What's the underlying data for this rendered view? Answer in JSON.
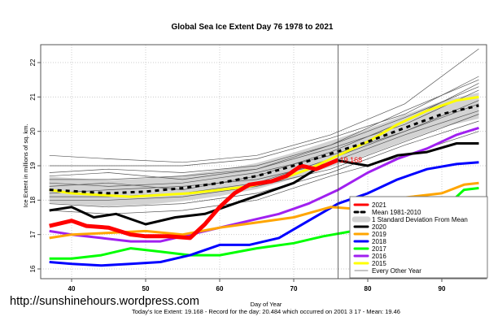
{
  "chart_data": {
    "type": "line",
    "title": "Global Sea Ice Extent Day 76 1978 to 2021",
    "xlabel": "Day of Year",
    "ylabel": "Ice Extent in millions of sq. km.",
    "xlim": [
      36.5,
      96
    ],
    "ylim": [
      15.85,
      22.4
    ],
    "xticks": [
      40,
      50,
      60,
      70,
      80,
      90
    ],
    "yticks": [
      16,
      17,
      18,
      19,
      20,
      21,
      22
    ],
    "grid": true,
    "current_day": 76,
    "current_value_label": "19.168",
    "legend_position": "bottom-right",
    "footer": "Today's Ice Extent: 19.168  - Record for the day: 20.484 which occurred on 2001 3 17  - Mean: 19.46",
    "watermark": "http://sunshinehours.wordpress.com",
    "sd_band": {
      "name": "1 Standard Deviation From Mean",
      "halfwidth": 0.38,
      "color": "#d3d3d3"
    },
    "mean": {
      "name": "Mean 1981-2010",
      "color": "#000000",
      "x": [
        37,
        45,
        50,
        55,
        60,
        65,
        70,
        75,
        80,
        85,
        90,
        95
      ],
      "y": [
        18.3,
        18.2,
        18.25,
        18.35,
        18.5,
        18.7,
        19.0,
        19.35,
        19.7,
        20.1,
        20.5,
        20.75
      ]
    },
    "series": [
      {
        "name": "2021",
        "color": "#ff0000",
        "width": 5,
        "x": [
          37,
          40,
          42,
          45,
          48,
          50,
          53,
          56,
          58,
          60,
          62,
          64,
          67,
          69,
          71,
          73,
          76
        ],
        "y": [
          17.25,
          17.4,
          17.25,
          17.2,
          17.0,
          16.95,
          16.95,
          16.9,
          17.3,
          17.8,
          18.2,
          18.45,
          18.55,
          18.7,
          19.0,
          18.9,
          19.17
        ]
      },
      {
        "name": "2020",
        "color": "#000000",
        "width": 3,
        "x": [
          37,
          40,
          43,
          46,
          50,
          54,
          58,
          62,
          66,
          70,
          73,
          76,
          80,
          84,
          88,
          92,
          95
        ],
        "y": [
          17.7,
          17.8,
          17.5,
          17.6,
          17.3,
          17.5,
          17.6,
          17.9,
          18.2,
          18.5,
          18.9,
          19.15,
          19.0,
          19.3,
          19.4,
          19.65,
          19.65
        ]
      },
      {
        "name": "2019",
        "color": "#ffa500",
        "width": 3,
        "x": [
          37,
          40,
          45,
          50,
          55,
          60,
          65,
          70,
          75,
          78,
          82,
          86,
          90,
          93,
          95
        ],
        "y": [
          16.9,
          17.0,
          17.05,
          17.1,
          17.0,
          17.2,
          17.35,
          17.5,
          17.8,
          17.75,
          18.0,
          18.1,
          18.2,
          18.45,
          18.5
        ]
      },
      {
        "name": "2018",
        "color": "#0000ff",
        "width": 3,
        "x": [
          37,
          40,
          44,
          48,
          52,
          56,
          60,
          64,
          68,
          72,
          76,
          80,
          84,
          88,
          92,
          95
        ],
        "y": [
          16.2,
          16.15,
          16.1,
          16.15,
          16.2,
          16.4,
          16.7,
          16.7,
          16.9,
          17.4,
          17.9,
          18.2,
          18.6,
          18.9,
          19.05,
          19.1
        ]
      },
      {
        "name": "2017",
        "color": "#00ff00",
        "width": 3,
        "x": [
          37,
          40,
          44,
          48,
          52,
          56,
          60,
          65,
          70,
          74,
          78,
          82,
          86,
          90,
          93,
          95
        ],
        "y": [
          16.3,
          16.3,
          16.4,
          16.6,
          16.5,
          16.4,
          16.4,
          16.6,
          16.75,
          16.95,
          17.1,
          17.3,
          17.5,
          17.7,
          18.3,
          18.35
        ]
      },
      {
        "name": "2016",
        "color": "#a020f0",
        "width": 3,
        "x": [
          37,
          40,
          44,
          48,
          52,
          56,
          60,
          64,
          68,
          72,
          76,
          80,
          84,
          88,
          92,
          95
        ],
        "y": [
          17.1,
          17.0,
          16.9,
          16.8,
          16.8,
          17.0,
          17.2,
          17.4,
          17.6,
          17.9,
          18.3,
          18.8,
          19.2,
          19.5,
          19.9,
          20.1
        ]
      },
      {
        "name": "2015",
        "color": "#ffff00",
        "width": 3,
        "x": [
          37,
          40,
          44,
          48,
          52,
          56,
          60,
          64,
          68,
          72,
          76,
          80,
          84,
          88,
          92,
          95
        ],
        "y": [
          18.3,
          18.2,
          18.15,
          18.1,
          18.15,
          18.2,
          18.3,
          18.4,
          18.6,
          18.9,
          19.3,
          19.7,
          20.2,
          20.6,
          20.9,
          21.0
        ]
      }
    ],
    "other_years": {
      "name": "Every Other Year",
      "color": "#555555",
      "x": [
        37,
        45,
        55,
        65,
        75,
        85,
        95
      ],
      "lines": [
        [
          19.3,
          19.2,
          19.1,
          19.3,
          19.9,
          20.8,
          22.4
        ],
        [
          19.0,
          19.0,
          19.0,
          19.2,
          19.8,
          20.5,
          21.6
        ],
        [
          18.8,
          18.9,
          18.8,
          19.0,
          19.6,
          20.4,
          21.3
        ],
        [
          18.6,
          18.6,
          18.7,
          18.9,
          19.5,
          20.2,
          21.2
        ],
        [
          18.5,
          18.4,
          18.5,
          18.8,
          19.3,
          20.0,
          20.9
        ],
        [
          18.2,
          18.3,
          18.4,
          18.6,
          19.1,
          19.9,
          20.6
        ],
        [
          18.0,
          18.0,
          18.1,
          18.4,
          18.9,
          19.7,
          20.5
        ],
        [
          17.9,
          17.8,
          17.9,
          18.2,
          18.8,
          19.6,
          20.3
        ],
        [
          18.4,
          18.5,
          18.3,
          18.7,
          19.4,
          20.3,
          21.4
        ],
        [
          18.1,
          18.1,
          18.2,
          18.5,
          19.2,
          20.0,
          20.8
        ],
        [
          17.7,
          17.6,
          17.7,
          18.0,
          18.7,
          19.3,
          20.0
        ],
        [
          18.7,
          18.8,
          18.6,
          18.9,
          19.6,
          20.6,
          21.5
        ]
      ]
    }
  }
}
